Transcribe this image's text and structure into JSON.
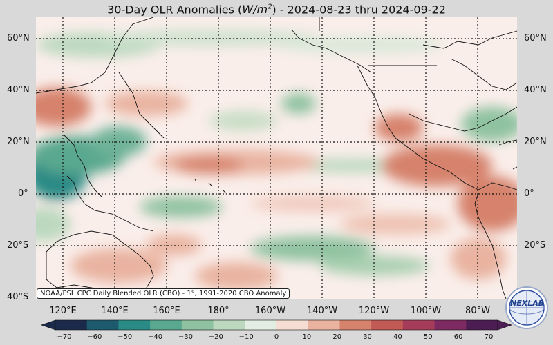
{
  "title": {
    "prefix": "30-Day OLR Anomalies (",
    "unit_base": "W/m",
    "unit_exp": "2",
    "suffix": ") - 2024-08-23 thru 2024-09-22"
  },
  "credit": "NOAA/PSL CPC Daily Blended OLR (CBO) - 1°, 1991-2020 CBO Anomaly",
  "logo_text": "NEXLAB",
  "lat_labels": [
    "60°N",
    "40°N",
    "20°N",
    "0°",
    "20°S",
    "40°S"
  ],
  "lon_labels": [
    "120°E",
    "140°E",
    "160°E",
    "180°",
    "160°W",
    "140°W",
    "120°W",
    "100°W",
    "80°W"
  ],
  "colorbar": {
    "ticks": [
      "−70",
      "−60",
      "−50",
      "−40",
      "−30",
      "−20",
      "−10",
      "0",
      "10",
      "20",
      "30",
      "40",
      "50",
      "60",
      "70"
    ],
    "colors_low": [
      "#1b2a4a",
      "#1e5a6e",
      "#2a8a85",
      "#5aa88f",
      "#8fc2a0",
      "#bcd9c0",
      "#e3eee3"
    ],
    "colors_high": [
      "#f6ddd3",
      "#e9b3a0",
      "#d6826c",
      "#c25b55",
      "#a53d5a",
      "#7e2a62",
      "#4b1d52"
    ]
  },
  "map": {
    "background": "#faeeea",
    "extent": {
      "lon_min": 110,
      "lon_max": 295,
      "lat_min": -40,
      "lat_max": 68
    }
  }
}
